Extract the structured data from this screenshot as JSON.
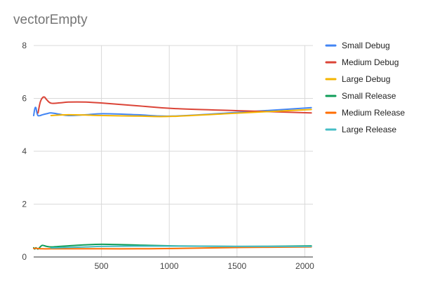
{
  "chart_data": {
    "type": "line",
    "title": "vectorEmpty",
    "xlabel": "",
    "ylabel": "",
    "xlim": [
      0,
      2060
    ],
    "ylim": [
      0,
      8
    ],
    "x_ticks": [
      "500",
      "1000",
      "1500",
      "2000"
    ],
    "y_ticks": [
      "0",
      "2",
      "4",
      "6",
      "8"
    ],
    "grid": true,
    "legend_position": "right",
    "series": [
      {
        "name": "Small Debug",
        "color": "#4285f4",
        "x": [
          0,
          8,
          16,
          24,
          32,
          48,
          64,
          96,
          128,
          192,
          256,
          384,
          512,
          768,
          1024,
          1536,
          2048
        ],
        "y": [
          5.35,
          5.6,
          5.65,
          5.45,
          5.35,
          5.35,
          5.38,
          5.42,
          5.45,
          5.4,
          5.35,
          5.38,
          5.42,
          5.38,
          5.33,
          5.48,
          5.65
        ]
      },
      {
        "name": "Medium Debug",
        "color": "#db4437",
        "x": [
          32,
          48,
          64,
          80,
          96,
          128,
          192,
          256,
          384,
          512,
          768,
          1024,
          1536,
          2048
        ],
        "y": [
          5.45,
          5.85,
          6.02,
          6.05,
          5.95,
          5.82,
          5.83,
          5.86,
          5.86,
          5.82,
          5.72,
          5.62,
          5.53,
          5.45
        ]
      },
      {
        "name": "Large Debug",
        "color": "#f4b400",
        "x": [
          128,
          192,
          256,
          384,
          512,
          768,
          1024,
          1536,
          2048
        ],
        "y": [
          5.35,
          5.37,
          5.38,
          5.37,
          5.35,
          5.33,
          5.32,
          5.45,
          5.58
        ]
      },
      {
        "name": "Small Release",
        "color": "#0f9d58",
        "x": [
          0,
          8,
          16,
          32,
          48,
          64,
          96,
          128,
          192,
          256,
          384,
          512,
          768,
          1024,
          1536,
          2048
        ],
        "y": [
          0.35,
          0.3,
          0.35,
          0.3,
          0.38,
          0.44,
          0.4,
          0.38,
          0.4,
          0.42,
          0.46,
          0.48,
          0.45,
          0.42,
          0.4,
          0.42
        ]
      },
      {
        "name": "Medium Release",
        "color": "#ff6d01",
        "x": [
          0,
          16,
          32,
          64,
          128,
          256,
          512,
          768,
          1024,
          1536,
          2048
        ],
        "y": [
          0.32,
          0.33,
          0.32,
          0.31,
          0.31,
          0.31,
          0.31,
          0.31,
          0.32,
          0.36,
          0.38
        ]
      },
      {
        "name": "Large Release",
        "color": "#46bdc6",
        "x": [
          128,
          192,
          256,
          384,
          512,
          768,
          1024,
          1536,
          2048
        ],
        "y": [
          0.34,
          0.35,
          0.36,
          0.38,
          0.4,
          0.41,
          0.41,
          0.4,
          0.4
        ]
      }
    ]
  }
}
